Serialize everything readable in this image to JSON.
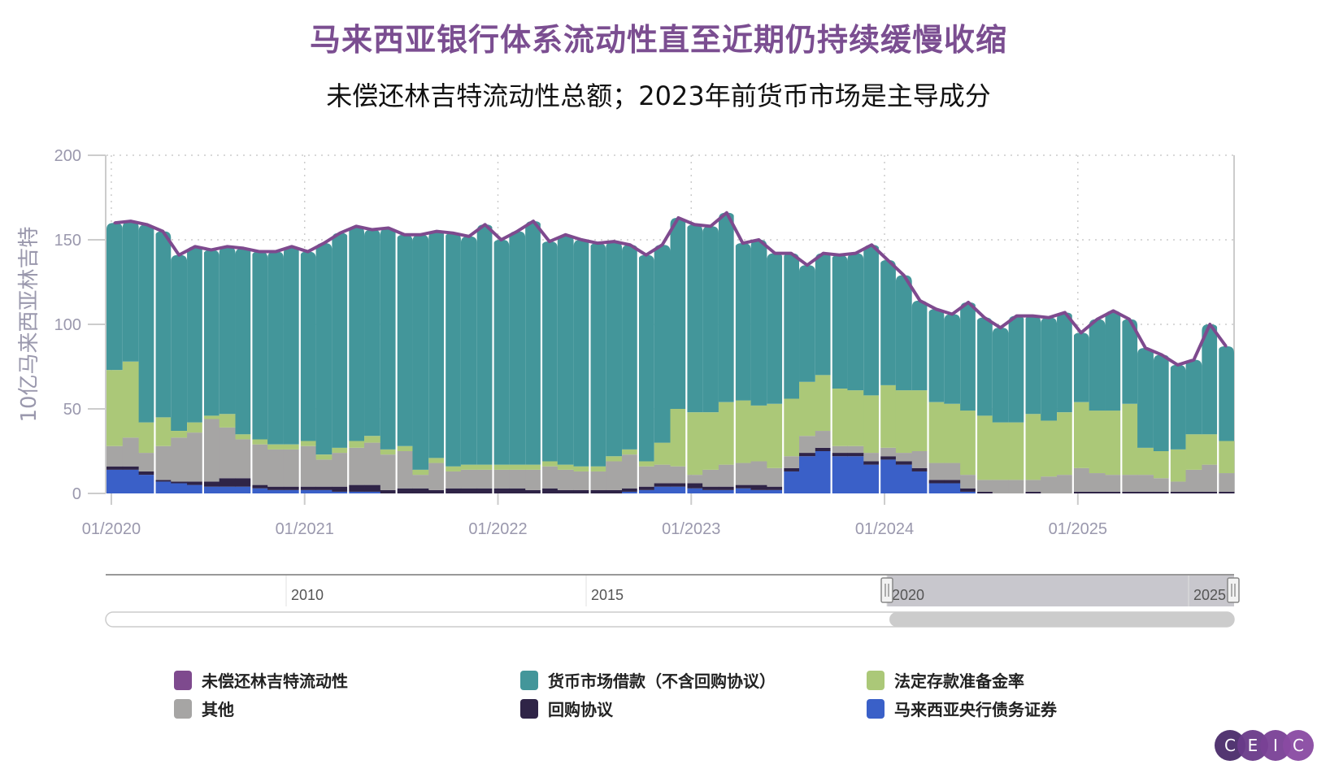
{
  "title": "马来西亚银行体系流动性直至近期仍持续缓慢收缩",
  "subtitle": "未偿还林吉特流动性总额；2023年前货币市场是主导成分",
  "logo": {
    "letters": [
      "C",
      "E",
      "I",
      "C"
    ],
    "colors": [
      "#4a2c6b",
      "#6a3b8a",
      "#7a4196",
      "#8a4aa3"
    ]
  },
  "navigator": {
    "tick_labels": [
      "2010",
      "2015",
      "2020",
      "2025"
    ],
    "selected_range": [
      "01/2020",
      "10/2025"
    ]
  },
  "legend": [
    {
      "label": "未偿还林吉特流动性",
      "color": "#7e4a8e"
    },
    {
      "label": "货币市场借款（不含回购协议）",
      "color": "#43969a"
    },
    {
      "label": "法定存款准备金率",
      "color": "#abc878"
    },
    {
      "label": "其他",
      "color": "#a6a5a4"
    },
    {
      "label": "回购协议",
      "color": "#2f2447"
    },
    {
      "label": "马来西亚央行债务证券",
      "color": "#3a60c8"
    }
  ],
  "chart_data": {
    "type": "bar",
    "stacked": true,
    "title": "马来西亚银行体系流动性直至近期仍持续缓慢收缩",
    "subtitle": "未偿还林吉特流动性总额；2023年前货币市场是主导成分",
    "xlabel": "",
    "ylabel": "10亿马来西亚林吉特",
    "ylim": [
      0,
      200
    ],
    "yticks": [
      0,
      50,
      100,
      150,
      200
    ],
    "xtick_labels": [
      "01/2020",
      "01/2021",
      "01/2022",
      "01/2023",
      "01/2024",
      "01/2025"
    ],
    "grid": true,
    "legend_position": "bottom",
    "x": [
      "2020-01",
      "2020-02",
      "2020-03",
      "2020-04",
      "2020-05",
      "2020-06",
      "2020-07",
      "2020-08",
      "2020-09",
      "2020-10",
      "2020-11",
      "2020-12",
      "2021-01",
      "2021-02",
      "2021-03",
      "2021-04",
      "2021-05",
      "2021-06",
      "2021-07",
      "2021-08",
      "2021-09",
      "2021-10",
      "2021-11",
      "2021-12",
      "2022-01",
      "2022-02",
      "2022-03",
      "2022-04",
      "2022-05",
      "2022-06",
      "2022-07",
      "2022-08",
      "2022-09",
      "2022-10",
      "2022-11",
      "2022-12",
      "2023-01",
      "2023-02",
      "2023-03",
      "2023-04",
      "2023-05",
      "2023-06",
      "2023-07",
      "2023-08",
      "2023-09",
      "2023-10",
      "2023-11",
      "2023-12",
      "2024-01",
      "2024-02",
      "2024-03",
      "2024-04",
      "2024-05",
      "2024-06",
      "2024-07",
      "2024-08",
      "2024-09",
      "2024-10",
      "2024-11",
      "2024-12",
      "2025-01",
      "2025-02",
      "2025-03",
      "2025-04",
      "2025-05",
      "2025-06",
      "2025-07",
      "2025-08",
      "2025-09",
      "2025-10"
    ],
    "line": {
      "name": "未偿还林吉特流动性",
      "values": [
        160,
        161,
        159,
        155,
        141,
        146,
        144,
        146,
        145,
        143,
        143,
        146,
        143,
        148,
        154,
        158,
        156,
        157,
        153,
        153,
        155,
        154,
        152,
        159,
        150,
        155,
        161,
        149,
        153,
        150,
        148,
        149,
        147,
        141,
        147,
        163,
        159,
        158,
        166,
        148,
        150,
        142,
        142,
        135,
        142,
        141,
        142,
        147,
        138,
        129,
        114,
        109,
        106,
        113,
        104,
        98,
        105,
        105,
        104,
        107,
        95,
        103,
        108,
        103,
        86,
        82,
        76,
        79,
        100,
        87
      ]
    },
    "series": [
      {
        "name": "马来西亚央行债务证券",
        "values": [
          14,
          14,
          11,
          7,
          6,
          5,
          4,
          4,
          4,
          3,
          2,
          2,
          2,
          2,
          1,
          1,
          1,
          0,
          0,
          0,
          0,
          0,
          0,
          0,
          0,
          0,
          0,
          0,
          0,
          0,
          0,
          0,
          1,
          2,
          4,
          4,
          3,
          2,
          2,
          3,
          2,
          2,
          13,
          22,
          25,
          22,
          22,
          17,
          20,
          17,
          13,
          6,
          6,
          1,
          0,
          0,
          0,
          0,
          0,
          0,
          0,
          0,
          0,
          0,
          0,
          0,
          0,
          0,
          0,
          0
        ]
      },
      {
        "name": "回购协议",
        "values": [
          2,
          2,
          2,
          1,
          1,
          2,
          3,
          5,
          5,
          2,
          2,
          2,
          2,
          2,
          3,
          4,
          4,
          2,
          3,
          3,
          2,
          3,
          3,
          3,
          3,
          3,
          2,
          3,
          2,
          2,
          2,
          2,
          2,
          2,
          2,
          2,
          3,
          2,
          2,
          2,
          3,
          2,
          2,
          2,
          2,
          2,
          2,
          2,
          2,
          2,
          2,
          2,
          2,
          2,
          1,
          0,
          0,
          1,
          0,
          0,
          1,
          1,
          1,
          1,
          1,
          1,
          1,
          1,
          1,
          1
        ]
      },
      {
        "name": "其他",
        "values": [
          12,
          17,
          11,
          20,
          26,
          29,
          37,
          30,
          23,
          24,
          22,
          22,
          24,
          16,
          20,
          22,
          25,
          21,
          22,
          8,
          16,
          10,
          11,
          11,
          11,
          11,
          12,
          13,
          12,
          11,
          11,
          17,
          20,
          12,
          11,
          10,
          5,
          10,
          13,
          13,
          14,
          11,
          7,
          10,
          10,
          4,
          4,
          5,
          5,
          5,
          10,
          10,
          10,
          8,
          7,
          8,
          8,
          7,
          10,
          11,
          14,
          11,
          10,
          10,
          10,
          8,
          6,
          13,
          16,
          11
        ]
      },
      {
        "name": "法定存款准备金率",
        "values": [
          45,
          45,
          18,
          17,
          4,
          6,
          2,
          8,
          3,
          3,
          3,
          3,
          3,
          3,
          3,
          4,
          4,
          3,
          3,
          3,
          3,
          3,
          3,
          3,
          3,
          3,
          3,
          3,
          3,
          3,
          3,
          3,
          3,
          3,
          13,
          34,
          37,
          34,
          37,
          37,
          33,
          38,
          34,
          32,
          33,
          34,
          33,
          34,
          37,
          37,
          36,
          36,
          35,
          38,
          38,
          34,
          34,
          39,
          33,
          37,
          39,
          37,
          38,
          42,
          16,
          16,
          19,
          21,
          18,
          19
        ]
      },
      {
        "name": "货币市场借款（不含回购协议）",
        "values": [
          87,
          83,
          117,
          110,
          104,
          104,
          98,
          99,
          110,
          111,
          114,
          117,
          112,
          125,
          127,
          127,
          122,
          131,
          125,
          139,
          134,
          138,
          135,
          142,
          133,
          138,
          144,
          130,
          136,
          134,
          132,
          127,
          121,
          122,
          117,
          113,
          111,
          110,
          112,
          93,
          98,
          89,
          86,
          69,
          72,
          79,
          81,
          89,
          74,
          68,
          53,
          55,
          53,
          64,
          58,
          56,
          63,
          58,
          61,
          59,
          41,
          54,
          59,
          50,
          59,
          57,
          50,
          44,
          65,
          56
        ]
      }
    ]
  }
}
